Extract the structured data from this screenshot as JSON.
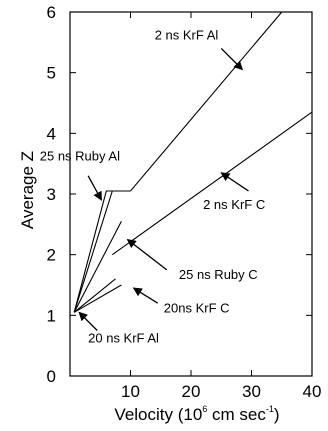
{
  "chart_data": {
    "type": "line",
    "xlabel": "Velocity (10",
    "xlabel_sup": "6",
    "xlabel_mid": " cm sec",
    "xlabel_sup2": "-1",
    "xlabel_end": ")",
    "ylabel": "Average Z",
    "xlim": [
      0,
      40
    ],
    "ylim": [
      0,
      6
    ],
    "x_ticks": [
      10,
      20,
      30,
      40
    ],
    "y_ticks": [
      0,
      1,
      2,
      3,
      4,
      5,
      6
    ],
    "grid": false,
    "series": [
      {
        "name": "2 ns KrF Al",
        "points": [
          [
            0.7,
            1.05
          ],
          [
            6.0,
            3.05
          ],
          [
            10.0,
            3.05
          ],
          [
            35.0,
            6.0
          ]
        ]
      },
      {
        "name": "2 ns KrF C",
        "points": [
          [
            7.0,
            2.0
          ],
          [
            40.0,
            4.35
          ]
        ]
      },
      {
        "name": "25 ns Ruby Al",
        "points": [
          [
            0.7,
            1.05
          ],
          [
            7.0,
            3.05
          ]
        ]
      },
      {
        "name": "25 ns Ruby C",
        "points": [
          [
            0.7,
            1.05
          ],
          [
            8.5,
            2.55
          ]
        ]
      },
      {
        "name": "20ns KrF C",
        "points": [
          [
            0.7,
            1.05
          ],
          [
            8.5,
            1.5
          ]
        ]
      },
      {
        "name": "20 ns KrF Al",
        "points": [
          [
            0.7,
            1.05
          ],
          [
            7.5,
            1.6
          ]
        ]
      }
    ],
    "annotations": [
      {
        "label": "2 ns KrF Al",
        "text_pos": [
          14.0,
          5.55
        ],
        "arrow_tail": [
          25.0,
          5.4
        ],
        "arrow_head": [
          28.5,
          5.05
        ]
      },
      {
        "label": "2 ns KrF C",
        "text_pos": [
          22.0,
          2.75
        ],
        "arrow_tail": [
          29.5,
          3.05
        ],
        "arrow_head": [
          25.0,
          3.35
        ]
      },
      {
        "label": "25 ns Ruby Al",
        "text_pos": [
          -5.0,
          3.55
        ],
        "arrow_tail": [
          3.0,
          3.3
        ],
        "arrow_head": [
          5.2,
          2.9
        ]
      },
      {
        "label": "25 ns Ruby C",
        "text_pos": [
          18.0,
          1.6
        ],
        "arrow_tail": [
          16.0,
          1.75
        ],
        "arrow_head": [
          9.5,
          2.25
        ]
      },
      {
        "label": "20ns KrF C",
        "text_pos": [
          15.5,
          1.05
        ],
        "arrow_tail": [
          14.5,
          1.2
        ],
        "arrow_head": [
          10.5,
          1.45
        ]
      },
      {
        "label": "20 ns KrF Al",
        "text_pos": [
          3.0,
          0.55
        ],
        "arrow_tail": [
          4.5,
          0.75
        ],
        "arrow_head": [
          1.5,
          1.05
        ]
      }
    ]
  }
}
